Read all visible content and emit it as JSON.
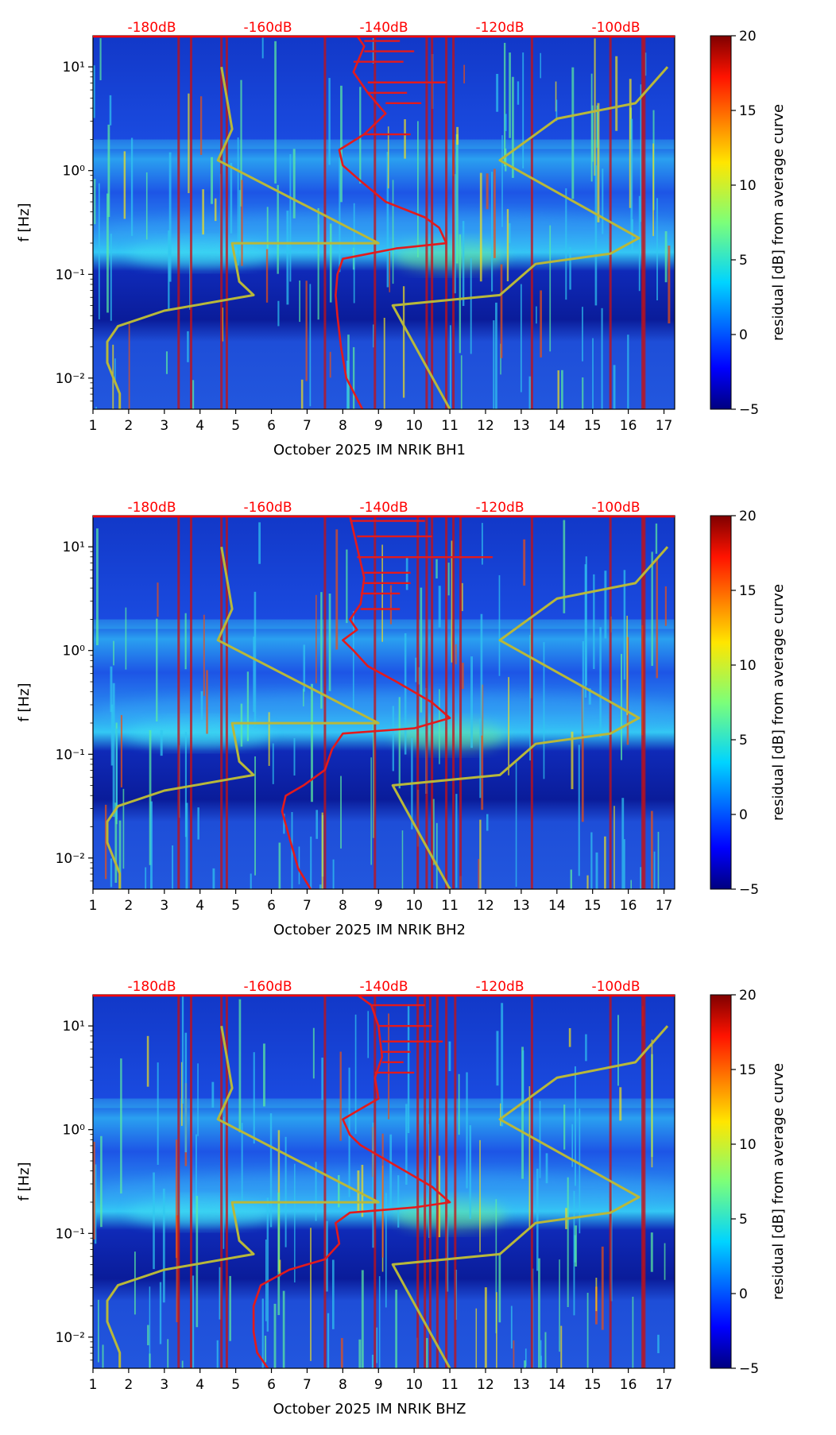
{
  "colors": {
    "db_label": "#ff0000",
    "red_curve": "#e31a1c",
    "noise_model": "#b8b83a",
    "axis": "#000000"
  },
  "chart_data": [
    {
      "type": "heatmap",
      "name": "bh1",
      "xlabel": "October 2025 IM NRIK  BH1",
      "ylabel": "f [Hz]",
      "xlim": [
        1,
        17.3
      ],
      "ylim_log10": [
        -2.3,
        1.3
      ],
      "x_ticks": [
        1,
        2,
        3,
        4,
        5,
        6,
        7,
        8,
        9,
        10,
        11,
        12,
        13,
        14,
        15,
        16,
        17
      ],
      "y_ticks": [
        {
          "value": -2,
          "label": "10⁻²"
        },
        {
          "value": -1,
          "label": "10⁻¹"
        },
        {
          "value": 0,
          "label": "10⁰"
        },
        {
          "value": 1,
          "label": "10¹"
        }
      ],
      "db_axis": {
        "labels": [
          "-180dB",
          "-160dB",
          "-140dB",
          "-120dB",
          "-100dB"
        ],
        "positions_x": [
          2.6,
          5.85,
          9.1,
          12.35,
          15.6
        ]
      },
      "colorbar": {
        "label": "residual [dB] from average curve",
        "min": -5,
        "max": 20,
        "ticks": [
          -5,
          0,
          5,
          10,
          15,
          20
        ]
      },
      "noise_model_low": [
        [
          1.75,
          -2.3
        ],
        [
          1.75,
          -2.15
        ],
        [
          1.4,
          -1.85
        ],
        [
          1.4,
          -1.65
        ],
        [
          1.7,
          -1.5
        ],
        [
          3,
          -1.35
        ],
        [
          5.5,
          -1.2
        ],
        [
          5.1,
          -1.07
        ],
        [
          4.9,
          -0.7
        ],
        [
          9,
          -0.7
        ],
        [
          4.5,
          0.1
        ],
        [
          4.9,
          0.4
        ],
        [
          4.6,
          1.0
        ]
      ],
      "noise_model_high": [
        [
          11,
          -2.3
        ],
        [
          9.4,
          -1.3
        ],
        [
          12.4,
          -1.2
        ],
        [
          13.4,
          -0.9
        ],
        [
          15.5,
          -0.8
        ],
        [
          16.3,
          -0.65
        ],
        [
          12.4,
          0.1
        ],
        [
          14,
          0.5
        ],
        [
          16.2,
          0.65
        ],
        [
          17.1,
          1.0
        ]
      ],
      "red_curve": [
        [
          8.55,
          -2.3
        ],
        [
          8.1,
          -2.0
        ],
        [
          7.95,
          -1.7
        ],
        [
          7.85,
          -1.4
        ],
        [
          7.8,
          -1.2
        ],
        [
          7.85,
          -1.0
        ],
        [
          8.0,
          -0.85
        ],
        [
          9.5,
          -0.75
        ],
        [
          10.9,
          -0.7
        ],
        [
          10.7,
          -0.55
        ],
        [
          10.3,
          -0.45
        ],
        [
          9.2,
          -0.3
        ],
        [
          8.5,
          -0.1
        ],
        [
          8.0,
          0.05
        ],
        [
          7.9,
          0.2
        ],
        [
          8.6,
          0.35
        ],
        [
          9.2,
          0.55
        ],
        [
          8.7,
          0.75
        ],
        [
          8.3,
          0.95
        ],
        [
          8.6,
          1.2
        ],
        [
          8.4,
          1.3
        ]
      ],
      "red_spikes": [
        [
          9.9,
          0.35
        ],
        [
          10.9,
          0.85
        ],
        [
          10.2,
          0.65
        ],
        [
          9.8,
          0.75
        ],
        [
          9.7,
          1.05
        ],
        [
          10.0,
          1.15
        ],
        [
          9.6,
          1.25
        ]
      ],
      "hot_columns": [
        3.4,
        3.75,
        4.6,
        4.75,
        7.5,
        8.9,
        10.35,
        10.5,
        10.9,
        11.1,
        13.3,
        15.5,
        16.4,
        16.45
      ]
    },
    {
      "type": "heatmap",
      "name": "bh2",
      "xlabel": "October 2025 IM NRIK  BH2",
      "ylabel": "f [Hz]",
      "xlim": [
        1,
        17.3
      ],
      "ylim_log10": [
        -2.3,
        1.3
      ],
      "x_ticks": [
        1,
        2,
        3,
        4,
        5,
        6,
        7,
        8,
        9,
        10,
        11,
        12,
        13,
        14,
        15,
        16,
        17
      ],
      "y_ticks": [
        {
          "value": -2,
          "label": "10⁻²"
        },
        {
          "value": -1,
          "label": "10⁻¹"
        },
        {
          "value": 0,
          "label": "10⁰"
        },
        {
          "value": 1,
          "label": "10¹"
        }
      ],
      "db_axis": {
        "labels": [
          "-180dB",
          "-160dB",
          "-140dB",
          "-120dB",
          "-100dB"
        ],
        "positions_x": [
          2.6,
          5.85,
          9.1,
          12.35,
          15.6
        ]
      },
      "colorbar": {
        "label": "residual [dB] from average curve",
        "min": -5,
        "max": 20,
        "ticks": [
          -5,
          0,
          5,
          10,
          15,
          20
        ]
      },
      "noise_model_low": [
        [
          1.75,
          -2.3
        ],
        [
          1.75,
          -2.15
        ],
        [
          1.4,
          -1.85
        ],
        [
          1.4,
          -1.65
        ],
        [
          1.7,
          -1.5
        ],
        [
          3,
          -1.35
        ],
        [
          5.5,
          -1.2
        ],
        [
          5.1,
          -1.07
        ],
        [
          4.9,
          -0.7
        ],
        [
          9,
          -0.7
        ],
        [
          4.5,
          0.1
        ],
        [
          4.9,
          0.4
        ],
        [
          4.6,
          1.0
        ]
      ],
      "noise_model_high": [
        [
          11,
          -2.3
        ],
        [
          9.4,
          -1.3
        ],
        [
          12.4,
          -1.2
        ],
        [
          13.4,
          -0.9
        ],
        [
          15.5,
          -0.8
        ],
        [
          16.3,
          -0.65
        ],
        [
          12.4,
          0.1
        ],
        [
          14,
          0.5
        ],
        [
          16.2,
          0.65
        ],
        [
          17.1,
          1.0
        ]
      ],
      "red_curve": [
        [
          7.1,
          -2.3
        ],
        [
          6.75,
          -2.1
        ],
        [
          6.5,
          -1.8
        ],
        [
          6.3,
          -1.55
        ],
        [
          6.4,
          -1.4
        ],
        [
          6.9,
          -1.3
        ],
        [
          7.5,
          -1.15
        ],
        [
          7.7,
          -0.95
        ],
        [
          8.0,
          -0.8
        ],
        [
          10.0,
          -0.75
        ],
        [
          11.0,
          -0.65
        ],
        [
          10.5,
          -0.5
        ],
        [
          9.5,
          -0.3
        ],
        [
          8.7,
          -0.15
        ],
        [
          8.3,
          0.0
        ],
        [
          8.0,
          0.1
        ],
        [
          8.4,
          0.2
        ],
        [
          8.2,
          0.3
        ],
        [
          8.5,
          0.45
        ],
        [
          8.6,
          0.7
        ],
        [
          8.4,
          1.0
        ],
        [
          8.2,
          1.3
        ]
      ],
      "red_spikes": [
        [
          12.2,
          0.9
        ],
        [
          10.5,
          1.1
        ],
        [
          9.6,
          0.55
        ],
        [
          9.9,
          0.65
        ],
        [
          10.3,
          1.25
        ],
        [
          9.9,
          0.75
        ],
        [
          9.6,
          0.4
        ]
      ],
      "hot_columns": [
        3.4,
        3.75,
        4.6,
        4.75,
        7.5,
        8.9,
        10.1,
        10.35,
        10.5,
        10.9,
        11.1,
        11.3,
        13.3,
        15.5,
        16.4,
        16.45
      ]
    },
    {
      "type": "heatmap",
      "name": "bhz",
      "xlabel": "October 2025 IM NRIK  BHZ",
      "ylabel": "f [Hz]",
      "xlim": [
        1,
        17.3
      ],
      "ylim_log10": [
        -2.3,
        1.3
      ],
      "x_ticks": [
        1,
        2,
        3,
        4,
        5,
        6,
        7,
        8,
        9,
        10,
        11,
        12,
        13,
        14,
        15,
        16,
        17
      ],
      "y_ticks": [
        {
          "value": -2,
          "label": "10⁻²"
        },
        {
          "value": -1,
          "label": "10⁻¹"
        },
        {
          "value": 0,
          "label": "10⁰"
        },
        {
          "value": 1,
          "label": "10¹"
        }
      ],
      "db_axis": {
        "labels": [
          "-180dB",
          "-160dB",
          "-140dB",
          "-120dB",
          "-100dB"
        ],
        "positions_x": [
          2.6,
          5.85,
          9.1,
          12.35,
          15.6
        ]
      },
      "colorbar": {
        "label": "residual [dB] from average curve",
        "min": -5,
        "max": 20,
        "ticks": [
          -5,
          0,
          5,
          10,
          15,
          20
        ]
      },
      "noise_model_low": [
        [
          1.75,
          -2.3
        ],
        [
          1.75,
          -2.15
        ],
        [
          1.4,
          -1.85
        ],
        [
          1.4,
          -1.65
        ],
        [
          1.7,
          -1.5
        ],
        [
          3,
          -1.35
        ],
        [
          5.5,
          -1.2
        ],
        [
          5.1,
          -1.07
        ],
        [
          4.9,
          -0.7
        ],
        [
          9,
          -0.7
        ],
        [
          4.5,
          0.1
        ],
        [
          4.9,
          0.4
        ],
        [
          4.6,
          1.0
        ]
      ],
      "noise_model_high": [
        [
          11,
          -2.3
        ],
        [
          9.4,
          -1.3
        ],
        [
          12.4,
          -1.2
        ],
        [
          13.4,
          -0.9
        ],
        [
          15.5,
          -0.8
        ],
        [
          16.3,
          -0.65
        ],
        [
          12.4,
          0.1
        ],
        [
          14,
          0.5
        ],
        [
          16.2,
          0.65
        ],
        [
          17.1,
          1.0
        ]
      ],
      "red_curve": [
        [
          5.9,
          -2.3
        ],
        [
          5.6,
          -2.15
        ],
        [
          5.5,
          -1.95
        ],
        [
          5.5,
          -1.7
        ],
        [
          5.7,
          -1.5
        ],
        [
          6.5,
          -1.35
        ],
        [
          7.5,
          -1.25
        ],
        [
          7.9,
          -1.1
        ],
        [
          7.8,
          -0.9
        ],
        [
          8.2,
          -0.8
        ],
        [
          10.0,
          -0.75
        ],
        [
          11.0,
          -0.7
        ],
        [
          10.5,
          -0.55
        ],
        [
          9.5,
          -0.35
        ],
        [
          8.5,
          -0.15
        ],
        [
          8.2,
          -0.05
        ],
        [
          8.0,
          0.1
        ],
        [
          8.5,
          0.2
        ],
        [
          9.0,
          0.3
        ],
        [
          8.9,
          0.5
        ],
        [
          9.1,
          0.7
        ],
        [
          9.0,
          1.0
        ],
        [
          8.8,
          1.2
        ],
        [
          8.4,
          1.3
        ]
      ],
      "red_spikes": [
        [
          10.8,
          0.85
        ],
        [
          10.0,
          0.55
        ],
        [
          9.7,
          0.65
        ],
        [
          10.5,
          1.0
        ],
        [
          10.3,
          1.2
        ],
        [
          9.9,
          0.75
        ]
      ],
      "hot_columns": [
        3.4,
        3.75,
        4.6,
        4.75,
        7.5,
        8.9,
        10.1,
        10.3,
        10.45,
        10.65,
        10.9,
        11.15,
        13.3,
        15.5,
        16.4,
        16.45
      ]
    }
  ]
}
